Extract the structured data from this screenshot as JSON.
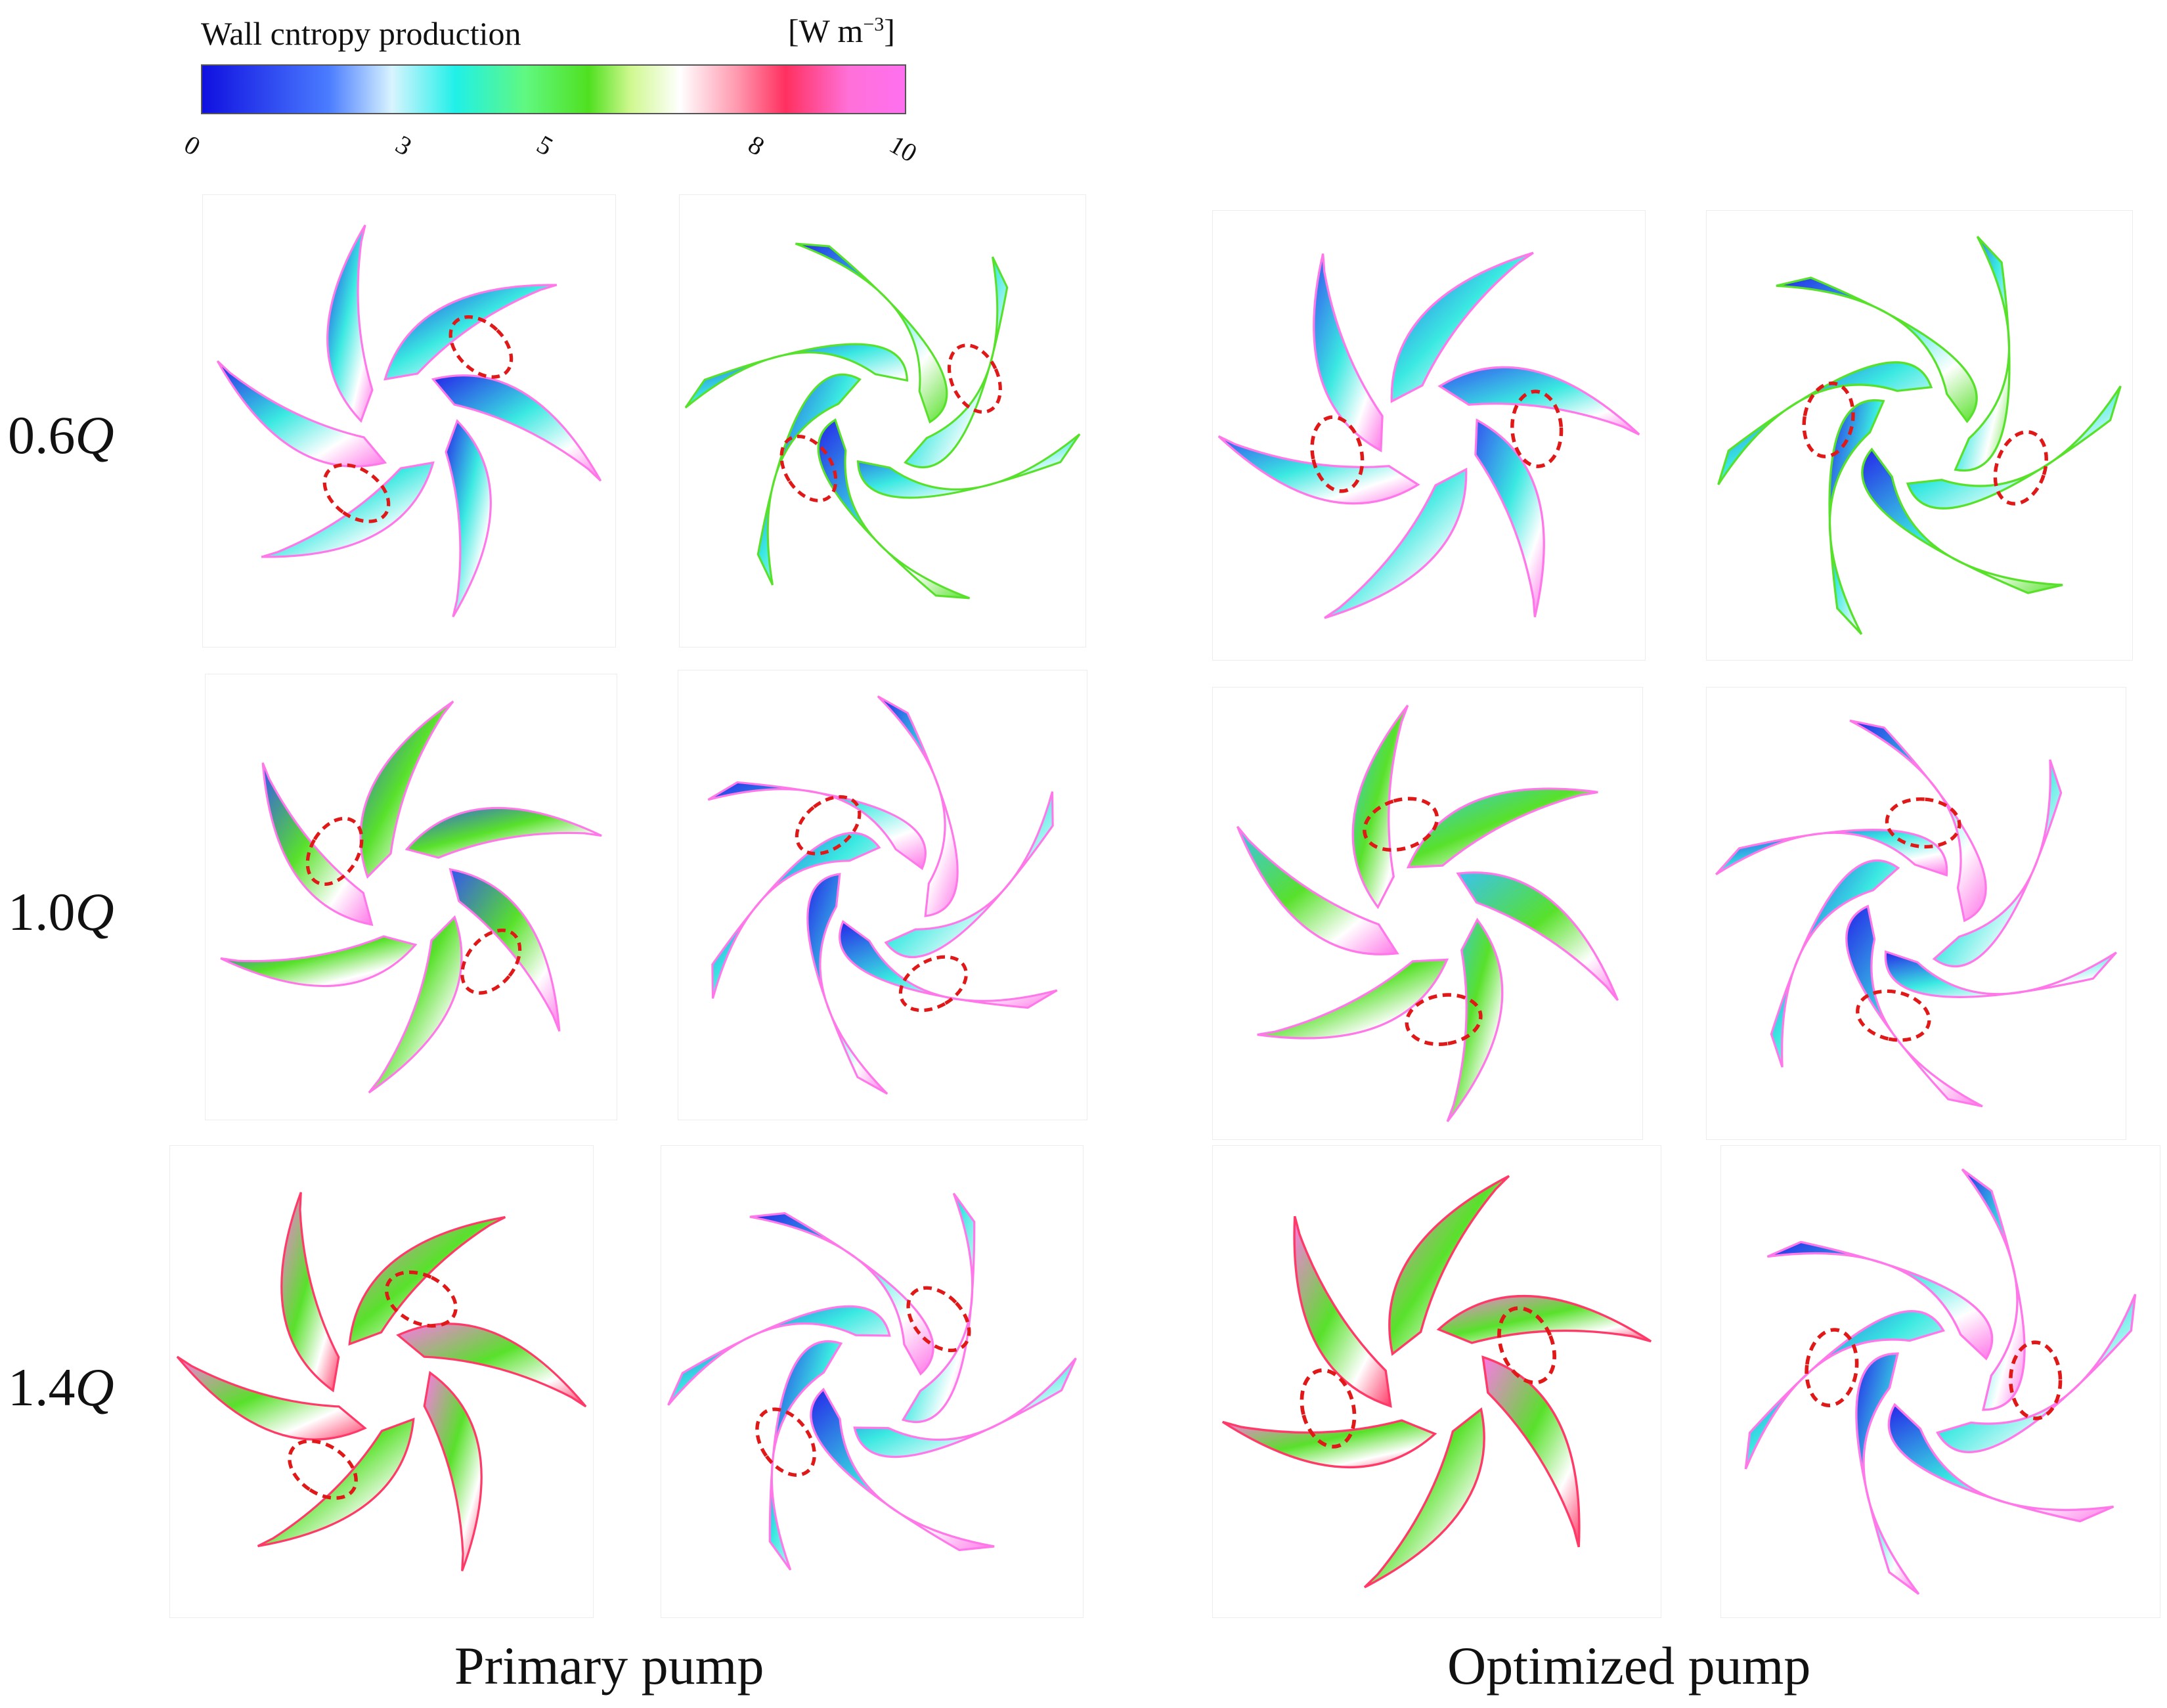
{
  "colorbar": {
    "title": "Wall cntropy production",
    "unit_base": "[W m",
    "unit_exp": "−3",
    "unit_close": "]",
    "ticks": [
      "0",
      "3",
      "5",
      "8",
      "10"
    ],
    "tick_values": [
      0,
      3,
      5,
      8,
      10
    ],
    "range": [
      0,
      10
    ],
    "gradient_stops": [
      {
        "offset": 0.0,
        "color": "#1010e0"
      },
      {
        "offset": 0.18,
        "color": "#4a7cff"
      },
      {
        "offset": 0.27,
        "color": "#d8f4ff"
      },
      {
        "offset": 0.36,
        "color": "#20f0e8"
      },
      {
        "offset": 0.46,
        "color": "#60f880"
      },
      {
        "offset": 0.55,
        "color": "#50e020"
      },
      {
        "offset": 0.61,
        "color": "#d0f890"
      },
      {
        "offset": 0.68,
        "color": "#ffffff"
      },
      {
        "offset": 0.76,
        "color": "#ff9ab0"
      },
      {
        "offset": 0.83,
        "color": "#ff3060"
      },
      {
        "offset": 0.92,
        "color": "#ff70d8"
      },
      {
        "offset": 1.0,
        "color": "#ff70f0"
      }
    ]
  },
  "rows": [
    {
      "label_value": "0.6",
      "label_var": "Q"
    },
    {
      "label_value": "1.0",
      "label_var": "Q"
    },
    {
      "label_value": "1.4",
      "label_var": "Q"
    }
  ],
  "groups": [
    {
      "label": "Primary pump"
    },
    {
      "label": "Optimized pump"
    }
  ],
  "panels": [
    {
      "row": 0,
      "group": 0,
      "side": "left",
      "base": "#1a1ae8",
      "accent": "#30e8e0",
      "hi": "#ff70e8"
    },
    {
      "row": 0,
      "group": 0,
      "side": "right",
      "base": "#1a1ae8",
      "accent": "#30e8e0",
      "hi": "#50e020"
    },
    {
      "row": 0,
      "group": 1,
      "side": "left",
      "base": "#2a4cf0",
      "accent": "#30e8e0",
      "hi": "#ff70e8"
    },
    {
      "row": 0,
      "group": 1,
      "side": "right",
      "base": "#1a1ae8",
      "accent": "#30e8e0",
      "hi": "#50e020"
    },
    {
      "row": 1,
      "group": 0,
      "side": "left",
      "base": "#2a4cf0",
      "accent": "#50e020",
      "hi": "#ff70e8"
    },
    {
      "row": 1,
      "group": 0,
      "side": "right",
      "base": "#1a1ae8",
      "accent": "#30e8e0",
      "hi": "#ff70e8"
    },
    {
      "row": 1,
      "group": 1,
      "side": "left",
      "base": "#30c0f0",
      "accent": "#50e020",
      "hi": "#ff70e8"
    },
    {
      "row": 1,
      "group": 1,
      "side": "right",
      "base": "#1a1ae8",
      "accent": "#30e8e0",
      "hi": "#ff70e8"
    },
    {
      "row": 2,
      "group": 0,
      "side": "left",
      "base": "#ff70e8",
      "accent": "#50e020",
      "hi": "#ff3060"
    },
    {
      "row": 2,
      "group": 0,
      "side": "right",
      "base": "#1a1ae8",
      "accent": "#30e8e0",
      "hi": "#ff70e8"
    },
    {
      "row": 2,
      "group": 1,
      "side": "left",
      "base": "#ff70e8",
      "accent": "#50e020",
      "hi": "#ff3060"
    },
    {
      "row": 2,
      "group": 1,
      "side": "right",
      "base": "#1a1ae8",
      "accent": "#30e8e0",
      "hi": "#ff70e8"
    }
  ]
}
